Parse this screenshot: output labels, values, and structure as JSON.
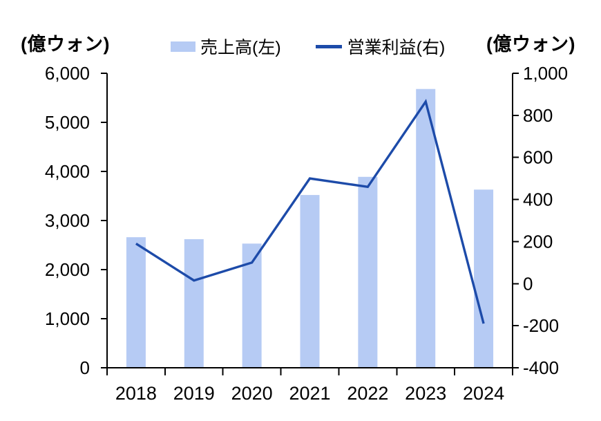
{
  "chart_data": {
    "type": "combo",
    "title": "",
    "categories": [
      "2018",
      "2019",
      "2020",
      "2021",
      "2022",
      "2023",
      "2024"
    ],
    "series": [
      {
        "name": "売上高(左)",
        "type": "bar",
        "axis": "left",
        "color": "#b6cbf4",
        "values": [
          2660,
          2620,
          2530,
          3520,
          3890,
          5680,
          3630
        ]
      },
      {
        "name": "営業利益(右)",
        "type": "line",
        "axis": "right",
        "color": "#1d4ba9",
        "values": [
          190,
          15,
          100,
          500,
          460,
          865,
          -190
        ]
      }
    ],
    "left_axis": {
      "label": "(億ウォン)",
      "min": 0,
      "max": 6000,
      "step": 1000
    },
    "right_axis": {
      "label": "(億ウォン)",
      "min": -400,
      "max": 1000,
      "step": 200
    },
    "legend_position": "top",
    "grid": false,
    "axis_color": "#000000",
    "background_color": "#ffffff"
  }
}
